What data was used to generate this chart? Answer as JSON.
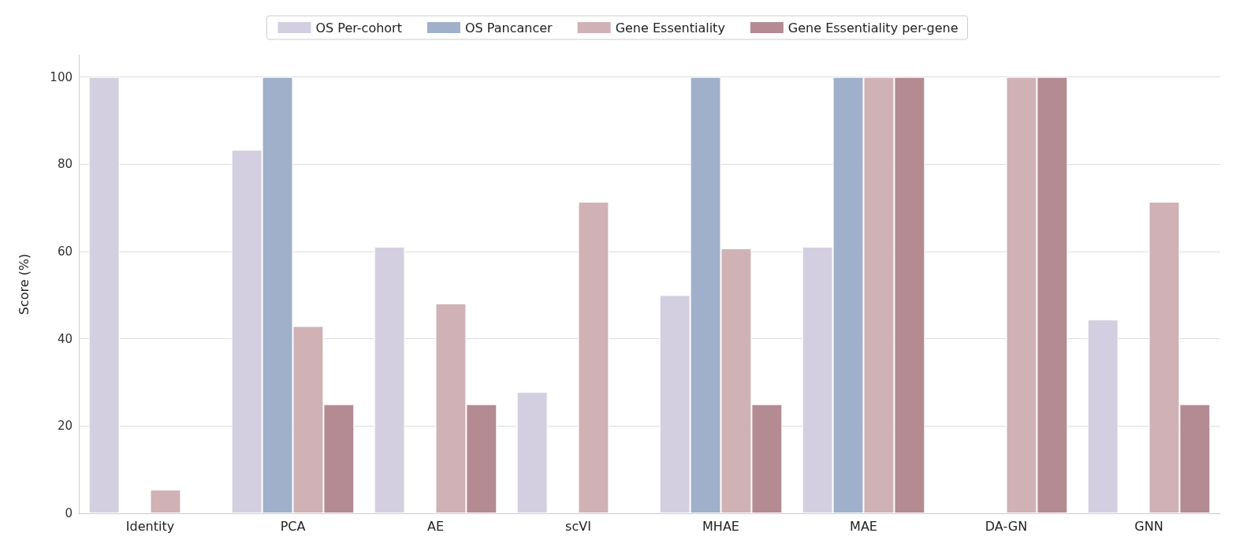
{
  "chart_data": {
    "type": "bar",
    "categories": [
      "Identity",
      "PCA",
      "AE",
      "scVI",
      "MHAE",
      "MAE",
      "DA-GN",
      "GNN"
    ],
    "series": [
      {
        "name": "OS Per-cohort",
        "color": "#d3cfe0",
        "values": [
          100,
          83.3,
          61.1,
          27.8,
          50,
          61.1,
          null,
          44.4
        ]
      },
      {
        "name": "OS Pancancer",
        "color": "#a0b0ca",
        "values": [
          null,
          100,
          null,
          null,
          100,
          100,
          null,
          null
        ]
      },
      {
        "name": "Gene Essentiality",
        "color": "#cfb1b6",
        "values": [
          5.4,
          42.9,
          48.1,
          71.4,
          60.7,
          100,
          100,
          71.4
        ]
      },
      {
        "name": "Gene Essentiality per-gene",
        "color": "#b48a93",
        "values": [
          null,
          25,
          25,
          null,
          25,
          100,
          100,
          25
        ]
      }
    ],
    "ylabel": "Score (%)",
    "ylim": [
      0,
      105
    ],
    "yticks": [
      0,
      20,
      40,
      60,
      80,
      100
    ],
    "grid": "y",
    "legend": "top"
  }
}
